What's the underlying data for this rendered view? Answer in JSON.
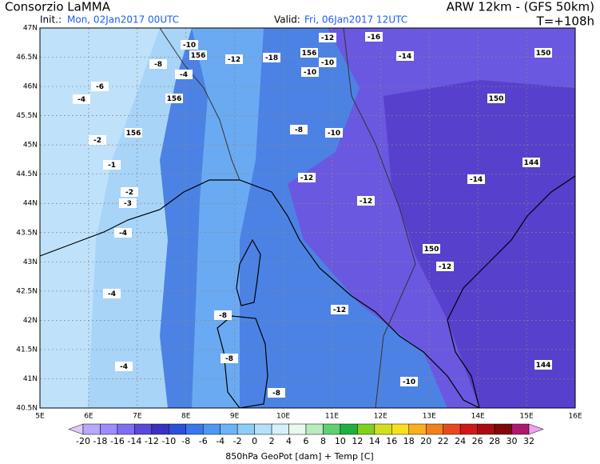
{
  "header": {
    "title": "Consorzio LaMMA",
    "model": "ARW 12km - (GFS 50km)",
    "init_label": "Init.:",
    "init": "Mon, 02Jan2017 00UTC",
    "valid_label": "Valid:",
    "valid": "Fri, 06Jan2017 12UTC",
    "lead": "T=+108h"
  },
  "map": {
    "lat_labels": [
      "47N",
      "46.5N",
      "46N",
      "45.5N",
      "45N",
      "44.5N",
      "44N",
      "43.5N",
      "43N",
      "42.5N",
      "42N",
      "41.5N",
      "41N",
      "40.5N"
    ],
    "lon_labels": [
      "5E",
      "6E",
      "7E",
      "8E",
      "9E",
      "10E",
      "11E",
      "12E",
      "13E",
      "14E",
      "15E",
      "16E"
    ],
    "contour_labels": [
      -10,
      156,
      -12,
      -18,
      156,
      -12,
      -16,
      -10,
      -10,
      -14,
      150,
      -8,
      -6,
      -4,
      -4,
      156,
      -2,
      156,
      -8,
      -10,
      150,
      -1,
      144,
      -12,
      -14,
      -2,
      -3,
      -12,
      -4,
      150,
      -12,
      -4,
      -12,
      -8,
      -8,
      -4,
      144,
      -10,
      -8
    ]
  },
  "colorbar": {
    "ticks": [
      -20,
      -18,
      -16,
      -14,
      -12,
      -10,
      -8,
      -6,
      -4,
      -2,
      0,
      2,
      4,
      6,
      8,
      10,
      12,
      14,
      16,
      18,
      20,
      22,
      24,
      26,
      28,
      30,
      32
    ],
    "colors": [
      "#e0c8ff",
      "#b8a8ff",
      "#9c8cff",
      "#7e6ef0",
      "#5a48d8",
      "#3c30c0",
      "#2c50d8",
      "#3a78ea",
      "#4e98f0",
      "#6cb4f6",
      "#90ccf8",
      "#b4e0fa",
      "#d6f0fa",
      "#e8faf0",
      "#b8ecc0",
      "#60d070",
      "#20b040",
      "#80d020",
      "#d0e020",
      "#f8e020",
      "#f8b020",
      "#f08020",
      "#e84820",
      "#d01818",
      "#a80c10",
      "#800808",
      "#b01870",
      "#f0a0f0"
    ],
    "label": "850hPa GeoPot [dam] + Temp [C]"
  }
}
